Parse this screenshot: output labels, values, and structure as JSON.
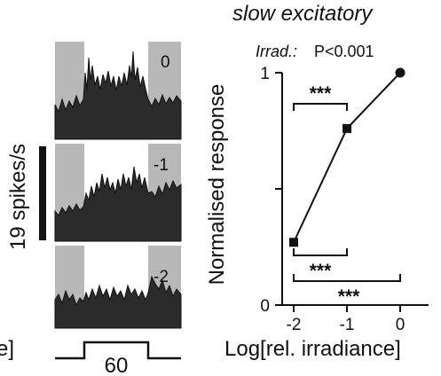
{
  "figure": {
    "title": "slow excitatory",
    "scale_bar_label": "19 spikes/s",
    "stim_duration_label": "60",
    "edge_label_left": "e]",
    "psth_panels": [
      {
        "label": "0"
      },
      {
        "label": "-1"
      },
      {
        "label": "-2"
      }
    ],
    "stats": {
      "main_test_prefix": "Irrad.:",
      "main_test_value": "P<0.001",
      "comparisons": [
        {
          "from": -2,
          "to": -1,
          "label": "***"
        },
        {
          "from": -2,
          "to": 0,
          "label": "***"
        },
        {
          "from": -1,
          "to": 0,
          "label": "***"
        }
      ]
    }
  },
  "colors": {
    "gray_band": "#b8b8b8",
    "trace_fill": "#2b2b2b",
    "line": "#111111"
  },
  "chart_data": {
    "type": "line",
    "title": "",
    "xlabel": "Log[rel. irradiance]",
    "ylabel": "Normalised response",
    "x": [
      -2,
      -1,
      0
    ],
    "series": [
      {
        "name": "",
        "values": [
          0.27,
          0.76,
          1.0
        ]
      }
    ],
    "xlim": [
      -2.5,
      0.5
    ],
    "ylim": [
      0,
      1
    ],
    "xticks": [
      "-2",
      "-1",
      "0"
    ],
    "yticks": [
      "0",
      "1"
    ],
    "grid": false,
    "legend": "none"
  }
}
